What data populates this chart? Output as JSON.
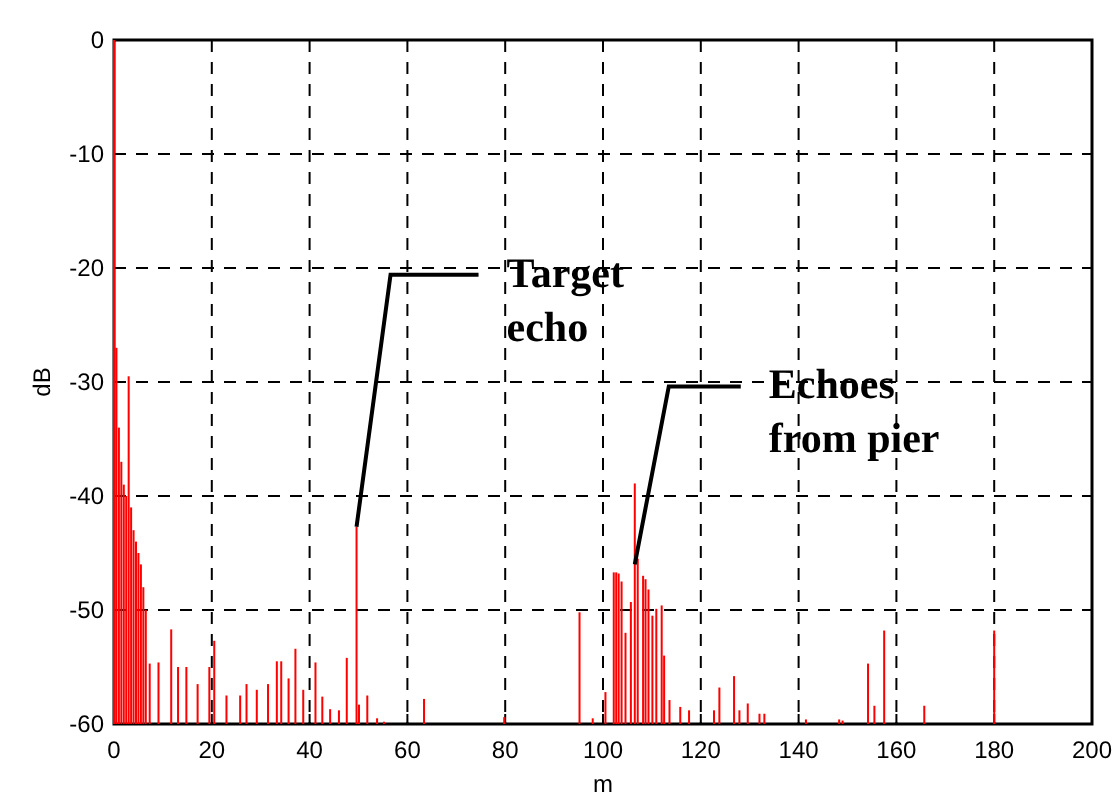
{
  "chart_data": {
    "type": "bar",
    "xlabel": "m",
    "ylabel": "dB",
    "xlim": [
      0,
      200
    ],
    "ylim": [
      -60,
      0
    ],
    "xticks": [
      0,
      20,
      40,
      60,
      80,
      100,
      120,
      140,
      160,
      180,
      200
    ],
    "yticks": [
      -60,
      -50,
      -40,
      -30,
      -20,
      -10,
      0
    ],
    "grid": true,
    "color": "#ff0000",
    "x": [
      0,
      0.5,
      1,
      1.5,
      2,
      2.5,
      3,
      3.5,
      4,
      4.5,
      5,
      5.5,
      6,
      6.5,
      7.3,
      9.1,
      11.7,
      13.1,
      14.8,
      17.1,
      19.5,
      20.5,
      23,
      25.8,
      27.1,
      29.2,
      31.5,
      33.3,
      34.2,
      35.7,
      37.1,
      38.7,
      41.2,
      42.6,
      44.2,
      46,
      47.6,
      49.6,
      50.1,
      51.8,
      53.8,
      55.2,
      63.4,
      79.8,
      95.2,
      97.9,
      100.5,
      102.2,
      102.7,
      103.2,
      103.8,
      104.6,
      105.7,
      106.5,
      107.1,
      108.2,
      108.7,
      109.3,
      110.1,
      110.9,
      112,
      112.5,
      113.6,
      115.8,
      117.6,
      122.7,
      123.8,
      126.8,
      127.9,
      129.6,
      132,
      133,
      141.5,
      148.3,
      149,
      154.2,
      155.5,
      157.5,
      165.7,
      180
    ],
    "base": [
      -60,
      -60,
      -60,
      -60,
      -60,
      -60,
      -60,
      -60,
      -60,
      -60,
      -60,
      -60,
      -60,
      -60,
      -60,
      -60,
      -60,
      -60,
      -60,
      -60,
      -60,
      -60,
      -60,
      -60,
      -60,
      -60,
      -60,
      -60,
      -60,
      -60,
      -60,
      -60,
      -60,
      -60,
      -60,
      -60,
      -60,
      -60,
      -60,
      -60,
      -60,
      -60,
      -60,
      -60,
      -60,
      -60,
      -60,
      -60,
      -60,
      -60,
      -60,
      -60,
      -60,
      -60,
      -60,
      -60,
      -60,
      -60,
      -60,
      -60,
      -60,
      -60,
      -60,
      -60,
      -60,
      -60,
      -60,
      -60,
      -60,
      -60,
      -60,
      -60,
      -60,
      -60,
      -60,
      -60,
      -60,
      -60,
      -60,
      -60
    ],
    "values": [
      60,
      33,
      26,
      23,
      21,
      20,
      30.5,
      19,
      17,
      16,
      15,
      14,
      12,
      10,
      5.3,
      5.4,
      8.3,
      5,
      5,
      3.5,
      5,
      7.3,
      2.5,
      2.5,
      3.5,
      3,
      3.5,
      5.5,
      5.5,
      4,
      6.6,
      3,
      5.4,
      2.4,
      1.3,
      1.2,
      5.8,
      17.3,
      1.7,
      2.5,
      0.5,
      0.2,
      2.2,
      0.6,
      9.8,
      0.5,
      2.8,
      13.3,
      13.3,
      13.2,
      12.5,
      8,
      10.7,
      21.1,
      14.5,
      13,
      12.7,
      11.8,
      9.5,
      10.1,
      10.4,
      6,
      2.1,
      1.5,
      1.2,
      1.2,
      3.2,
      4.2,
      1.2,
      1.8,
      0.9,
      0.9,
      0.4,
      0.4,
      0.3,
      5.3,
      1.6,
      8.2,
      1.6,
      8.2
    ],
    "annotations": [
      {
        "text": "Target\necho",
        "x": 49.6,
        "y": -42.7
      },
      {
        "text": "Echoes\nfrom pier",
        "x": 106.5,
        "y": -46
      }
    ]
  }
}
